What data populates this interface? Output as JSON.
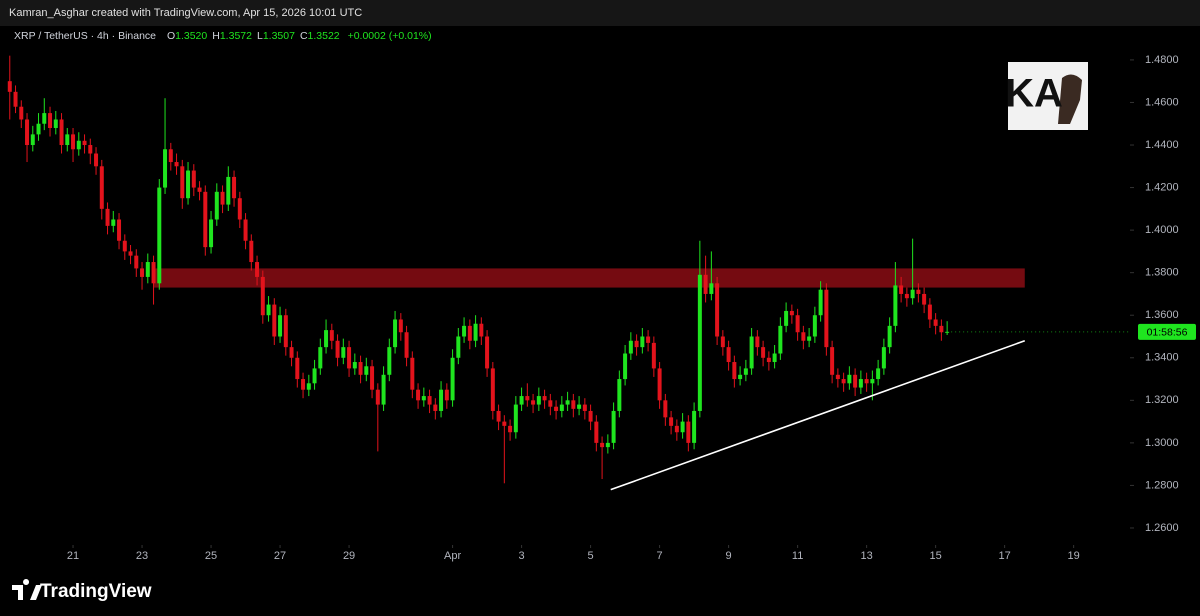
{
  "attribution": "Kamran_Asghar created with TradingView.com, Apr 15, 2026 10:01 UTC",
  "footer_brand": "TradingView",
  "watermark": "KA",
  "chart_data": {
    "type": "candlestick",
    "title": "XRP / TetherUS · 4h · Binance",
    "legend_values": [
      {
        "label": "O",
        "value": "1.3520"
      },
      {
        "label": "H",
        "value": "1.3572"
      },
      {
        "label": "L",
        "value": "1.3507"
      },
      {
        "label": "C",
        "value": "1.3522"
      }
    ],
    "change": "+0.0002 (+0.01%)",
    "countdown": "01:58:56",
    "up_color": "#1fe51f",
    "down_color": "#e3131c",
    "grid": false,
    "xlim": [
      -1.7,
      194.8
    ],
    "xticks": [
      {
        "value": 11,
        "label": "21"
      },
      {
        "value": 23,
        "label": "23"
      },
      {
        "value": 35,
        "label": "25"
      },
      {
        "value": 47,
        "label": "27"
      },
      {
        "value": 59,
        "label": "29"
      },
      {
        "value": 77,
        "label": "Apr"
      },
      {
        "value": 89,
        "label": "3"
      },
      {
        "value": 101,
        "label": "5"
      },
      {
        "value": 113,
        "label": "7"
      },
      {
        "value": 125,
        "label": "9"
      },
      {
        "value": 137,
        "label": "11"
      },
      {
        "value": 149,
        "label": "13"
      },
      {
        "value": 161,
        "label": "15"
      },
      {
        "value": 173,
        "label": "17"
      },
      {
        "value": 185,
        "label": "19"
      }
    ],
    "ylim": [
      1.252,
      1.495
    ],
    "yticks": [
      {
        "value": 1.26,
        "label": "1.2600"
      },
      {
        "value": 1.28,
        "label": "1.2800"
      },
      {
        "value": 1.3,
        "label": "1.3000"
      },
      {
        "value": 1.32,
        "label": "1.3200"
      },
      {
        "value": 1.34,
        "label": "1.3400"
      },
      {
        "value": 1.36,
        "label": "1.3600"
      },
      {
        "value": 1.38,
        "label": "1.3800"
      },
      {
        "value": 1.4,
        "label": "1.4000"
      },
      {
        "value": 1.42,
        "label": "1.4200"
      },
      {
        "value": 1.44,
        "label": "1.4400"
      },
      {
        "value": 1.46,
        "label": "1.4600"
      },
      {
        "value": 1.48,
        "label": "1.4800"
      }
    ],
    "zone": {
      "color": "#8a0d14",
      "x": [
        25,
        176.5
      ],
      "y": [
        1.373,
        1.382
      ]
    },
    "trendline": {
      "color": "#ffffff",
      "x": [
        104.5,
        176.5
      ],
      "y": [
        1.278,
        1.348
      ]
    },
    "ohlc": [
      [
        1.47,
        1.482,
        1.452,
        1.465
      ],
      [
        1.465,
        1.468,
        1.455,
        1.458
      ],
      [
        1.458,
        1.461,
        1.448,
        1.452
      ],
      [
        1.452,
        1.455,
        1.432,
        1.44
      ],
      [
        1.44,
        1.449,
        1.437,
        1.445
      ],
      [
        1.445,
        1.455,
        1.442,
        1.45
      ],
      [
        1.45,
        1.462,
        1.447,
        1.455
      ],
      [
        1.455,
        1.458,
        1.444,
        1.448
      ],
      [
        1.448,
        1.456,
        1.445,
        1.452
      ],
      [
        1.452,
        1.455,
        1.436,
        1.44
      ],
      [
        1.44,
        1.448,
        1.437,
        1.445
      ],
      [
        1.445,
        1.448,
        1.432,
        1.438
      ],
      [
        1.438,
        1.446,
        1.435,
        1.442
      ],
      [
        1.442,
        1.445,
        1.436,
        1.44
      ],
      [
        1.44,
        1.443,
        1.431,
        1.436
      ],
      [
        1.436,
        1.439,
        1.426,
        1.43
      ],
      [
        1.43,
        1.433,
        1.405,
        1.41
      ],
      [
        1.41,
        1.413,
        1.398,
        1.402
      ],
      [
        1.402,
        1.409,
        1.399,
        1.405
      ],
      [
        1.405,
        1.408,
        1.391,
        1.395
      ],
      [
        1.395,
        1.398,
        1.386,
        1.39
      ],
      [
        1.39,
        1.393,
        1.384,
        1.388
      ],
      [
        1.388,
        1.391,
        1.378,
        1.382
      ],
      [
        1.382,
        1.385,
        1.372,
        1.378
      ],
      [
        1.378,
        1.389,
        1.375,
        1.385
      ],
      [
        1.385,
        1.388,
        1.365,
        1.375
      ],
      [
        1.375,
        1.424,
        1.372,
        1.42
      ],
      [
        1.42,
        1.462,
        1.417,
        1.438
      ],
      [
        1.438,
        1.441,
        1.428,
        1.432
      ],
      [
        1.432,
        1.436,
        1.426,
        1.43
      ],
      [
        1.43,
        1.433,
        1.41,
        1.415
      ],
      [
        1.415,
        1.432,
        1.412,
        1.428
      ],
      [
        1.428,
        1.431,
        1.416,
        1.42
      ],
      [
        1.42,
        1.423,
        1.414,
        1.418
      ],
      [
        1.418,
        1.421,
        1.388,
        1.392
      ],
      [
        1.392,
        1.409,
        1.389,
        1.405
      ],
      [
        1.405,
        1.422,
        1.402,
        1.418
      ],
      [
        1.418,
        1.421,
        1.408,
        1.412
      ],
      [
        1.412,
        1.43,
        1.409,
        1.425
      ],
      [
        1.425,
        1.428,
        1.411,
        1.415
      ],
      [
        1.415,
        1.418,
        1.401,
        1.405
      ],
      [
        1.405,
        1.408,
        1.391,
        1.395
      ],
      [
        1.395,
        1.398,
        1.381,
        1.385
      ],
      [
        1.385,
        1.388,
        1.374,
        1.378
      ],
      [
        1.378,
        1.381,
        1.356,
        1.36
      ],
      [
        1.36,
        1.369,
        1.357,
        1.365
      ],
      [
        1.365,
        1.368,
        1.346,
        1.35
      ],
      [
        1.35,
        1.364,
        1.347,
        1.36
      ],
      [
        1.36,
        1.363,
        1.341,
        1.345
      ],
      [
        1.345,
        1.348,
        1.336,
        1.34
      ],
      [
        1.34,
        1.343,
        1.326,
        1.33
      ],
      [
        1.33,
        1.333,
        1.321,
        1.325
      ],
      [
        1.325,
        1.332,
        1.322,
        1.328
      ],
      [
        1.328,
        1.339,
        1.325,
        1.335
      ],
      [
        1.335,
        1.349,
        1.332,
        1.345
      ],
      [
        1.345,
        1.358,
        1.342,
        1.353
      ],
      [
        1.353,
        1.356,
        1.344,
        1.348
      ],
      [
        1.348,
        1.351,
        1.336,
        1.34
      ],
      [
        1.34,
        1.349,
        1.337,
        1.345
      ],
      [
        1.345,
        1.348,
        1.331,
        1.335
      ],
      [
        1.335,
        1.342,
        1.332,
        1.338
      ],
      [
        1.338,
        1.341,
        1.328,
        1.332
      ],
      [
        1.332,
        1.34,
        1.329,
        1.336
      ],
      [
        1.336,
        1.339,
        1.321,
        1.325
      ],
      [
        1.325,
        1.328,
        1.296,
        1.318
      ],
      [
        1.318,
        1.336,
        1.315,
        1.332
      ],
      [
        1.332,
        1.349,
        1.329,
        1.345
      ],
      [
        1.345,
        1.362,
        1.342,
        1.358
      ],
      [
        1.358,
        1.361,
        1.348,
        1.352
      ],
      [
        1.352,
        1.355,
        1.336,
        1.34
      ],
      [
        1.34,
        1.343,
        1.321,
        1.325
      ],
      [
        1.325,
        1.328,
        1.316,
        1.32
      ],
      [
        1.32,
        1.326,
        1.317,
        1.322
      ],
      [
        1.322,
        1.325,
        1.314,
        1.318
      ],
      [
        1.318,
        1.321,
        1.311,
        1.315
      ],
      [
        1.315,
        1.329,
        1.312,
        1.325
      ],
      [
        1.325,
        1.328,
        1.316,
        1.32
      ],
      [
        1.32,
        1.344,
        1.317,
        1.34
      ],
      [
        1.34,
        1.354,
        1.337,
        1.35
      ],
      [
        1.35,
        1.359,
        1.347,
        1.355
      ],
      [
        1.355,
        1.358,
        1.344,
        1.348
      ],
      [
        1.348,
        1.36,
        1.345,
        1.356
      ],
      [
        1.356,
        1.359,
        1.346,
        1.35
      ],
      [
        1.35,
        1.353,
        1.331,
        1.335
      ],
      [
        1.335,
        1.338,
        1.311,
        1.315
      ],
      [
        1.315,
        1.318,
        1.306,
        1.31
      ],
      [
        1.31,
        1.313,
        1.281,
        1.308
      ],
      [
        1.308,
        1.311,
        1.301,
        1.305
      ],
      [
        1.305,
        1.322,
        1.302,
        1.318
      ],
      [
        1.318,
        1.326,
        1.315,
        1.322
      ],
      [
        1.322,
        1.328,
        1.317,
        1.32
      ],
      [
        1.32,
        1.323,
        1.314,
        1.318
      ],
      [
        1.318,
        1.326,
        1.315,
        1.322
      ],
      [
        1.322,
        1.325,
        1.316,
        1.32
      ],
      [
        1.32,
        1.323,
        1.313,
        1.317
      ],
      [
        1.317,
        1.32,
        1.311,
        1.315
      ],
      [
        1.315,
        1.322,
        1.312,
        1.318
      ],
      [
        1.318,
        1.324,
        1.315,
        1.32
      ],
      [
        1.32,
        1.323,
        1.312,
        1.316
      ],
      [
        1.316,
        1.322,
        1.313,
        1.318
      ],
      [
        1.318,
        1.321,
        1.311,
        1.315
      ],
      [
        1.315,
        1.318,
        1.306,
        1.31
      ],
      [
        1.31,
        1.313,
        1.296,
        1.3
      ],
      [
        1.3,
        1.303,
        1.283,
        1.298
      ],
      [
        1.298,
        1.304,
        1.295,
        1.3
      ],
      [
        1.3,
        1.319,
        1.297,
        1.315
      ],
      [
        1.315,
        1.334,
        1.312,
        1.33
      ],
      [
        1.33,
        1.346,
        1.327,
        1.342
      ],
      [
        1.342,
        1.352,
        1.339,
        1.348
      ],
      [
        1.348,
        1.351,
        1.341,
        1.345
      ],
      [
        1.345,
        1.354,
        1.342,
        1.35
      ],
      [
        1.35,
        1.353,
        1.343,
        1.347
      ],
      [
        1.347,
        1.35,
        1.331,
        1.335
      ],
      [
        1.335,
        1.338,
        1.316,
        1.32
      ],
      [
        1.32,
        1.323,
        1.308,
        1.312
      ],
      [
        1.312,
        1.315,
        1.304,
        1.308
      ],
      [
        1.308,
        1.311,
        1.301,
        1.305
      ],
      [
        1.305,
        1.314,
        1.302,
        1.31
      ],
      [
        1.31,
        1.313,
        1.296,
        1.3
      ],
      [
        1.3,
        1.319,
        1.297,
        1.315
      ],
      [
        1.315,
        1.395,
        1.312,
        1.379
      ],
      [
        1.379,
        1.388,
        1.366,
        1.37
      ],
      [
        1.37,
        1.39,
        1.367,
        1.375
      ],
      [
        1.375,
        1.378,
        1.346,
        1.35
      ],
      [
        1.35,
        1.353,
        1.341,
        1.345
      ],
      [
        1.345,
        1.348,
        1.334,
        1.338
      ],
      [
        1.338,
        1.341,
        1.326,
        1.33
      ],
      [
        1.33,
        1.336,
        1.327,
        1.332
      ],
      [
        1.332,
        1.339,
        1.329,
        1.335
      ],
      [
        1.335,
        1.354,
        1.332,
        1.35
      ],
      [
        1.35,
        1.353,
        1.341,
        1.345
      ],
      [
        1.345,
        1.348,
        1.336,
        1.34
      ],
      [
        1.34,
        1.343,
        1.334,
        1.338
      ],
      [
        1.338,
        1.346,
        1.335,
        1.342
      ],
      [
        1.342,
        1.359,
        1.339,
        1.355
      ],
      [
        1.355,
        1.366,
        1.352,
        1.362
      ],
      [
        1.362,
        1.365,
        1.356,
        1.36
      ],
      [
        1.36,
        1.363,
        1.348,
        1.352
      ],
      [
        1.352,
        1.355,
        1.344,
        1.348
      ],
      [
        1.348,
        1.354,
        1.345,
        1.35
      ],
      [
        1.35,
        1.364,
        1.347,
        1.36
      ],
      [
        1.36,
        1.376,
        1.357,
        1.372
      ],
      [
        1.372,
        1.375,
        1.341,
        1.345
      ],
      [
        1.345,
        1.348,
        1.328,
        1.332
      ],
      [
        1.332,
        1.335,
        1.326,
        1.33
      ],
      [
        1.33,
        1.333,
        1.324,
        1.328
      ],
      [
        1.328,
        1.336,
        1.325,
        1.332
      ],
      [
        1.332,
        1.335,
        1.322,
        1.326
      ],
      [
        1.326,
        1.334,
        1.323,
        1.33
      ],
      [
        1.33,
        1.333,
        1.324,
        1.328
      ],
      [
        1.328,
        1.334,
        1.32,
        1.33
      ],
      [
        1.33,
        1.339,
        1.327,
        1.335
      ],
      [
        1.335,
        1.349,
        1.332,
        1.345
      ],
      [
        1.345,
        1.359,
        1.342,
        1.355
      ],
      [
        1.355,
        1.385,
        1.352,
        1.374
      ],
      [
        1.374,
        1.378,
        1.366,
        1.37
      ],
      [
        1.37,
        1.373,
        1.364,
        1.368
      ],
      [
        1.368,
        1.396,
        1.365,
        1.372
      ],
      [
        1.372,
        1.375,
        1.366,
        1.37
      ],
      [
        1.37,
        1.373,
        1.361,
        1.365
      ],
      [
        1.365,
        1.368,
        1.354,
        1.358
      ],
      [
        1.358,
        1.361,
        1.351,
        1.355
      ],
      [
        1.355,
        1.358,
        1.348,
        1.352
      ],
      [
        1.352,
        1.3572,
        1.3507,
        1.3522
      ]
    ]
  }
}
